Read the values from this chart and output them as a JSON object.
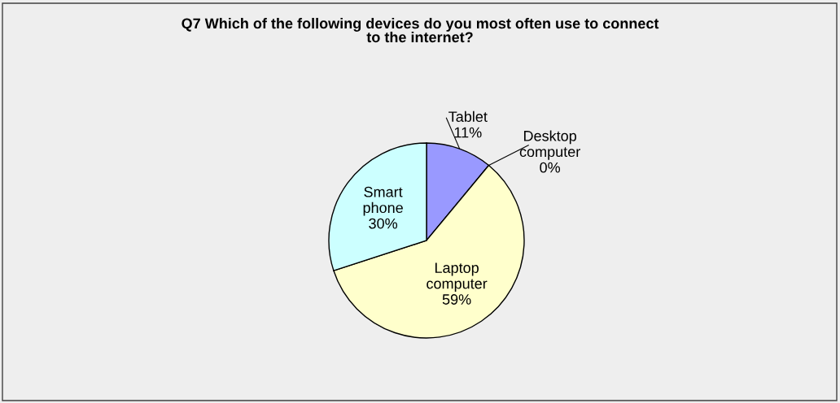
{
  "chart_data": {
    "type": "pie",
    "title": "Q7 Which of the following devices do you most often use to connect\nto the internet?",
    "categories": [
      "Tablet",
      "Desktop computer",
      "Laptop computer",
      "Smart phone"
    ],
    "values": [
      11,
      0,
      59,
      30
    ],
    "value_labels": [
      "11%",
      "0%",
      "59%",
      "30%"
    ],
    "colors": [
      "#9999ff",
      "#993366",
      "#ffffcc",
      "#ccffff"
    ]
  }
}
